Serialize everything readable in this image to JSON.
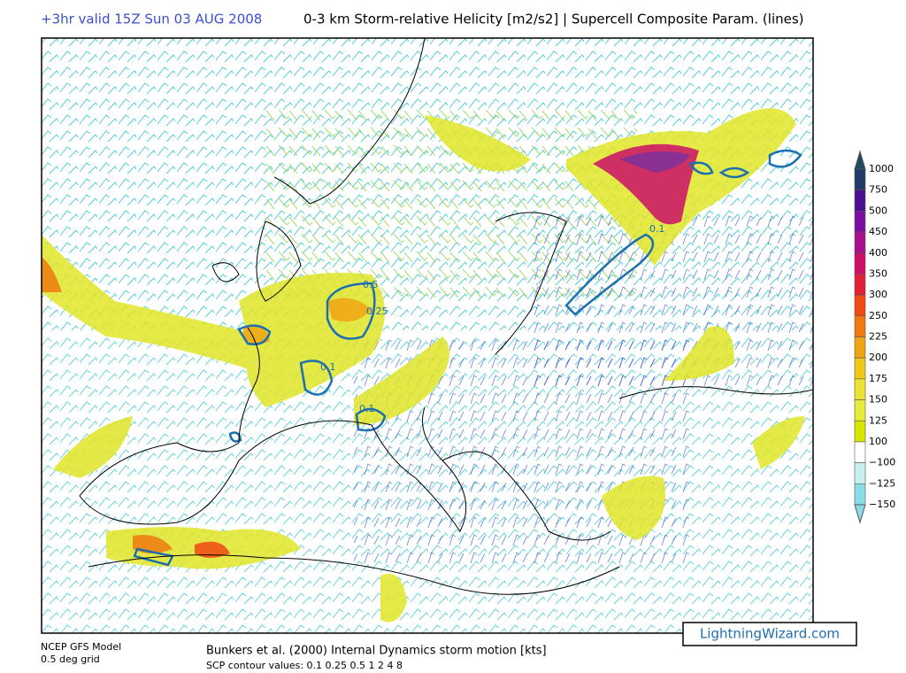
{
  "header": {
    "valid": "+3hr valid 15Z Sun 03 AUG 2008",
    "title": "0-3 km Storm-relative Helicity [m2/s2] | Supercell Composite Param. (lines)"
  },
  "legend": {
    "labels": [
      "1000",
      "750",
      "500",
      "450",
      "400",
      "350",
      "300",
      "250",
      "225",
      "200",
      "175",
      "150",
      "125",
      "100",
      "−100",
      "−125",
      "−150"
    ],
    "colors": [
      "#1f4a5e",
      "#233a6a",
      "#4a1090",
      "#7a10a0",
      "#a8108c",
      "#cc1068",
      "#e02038",
      "#f04a14",
      "#f07a10",
      "#f0a414",
      "#f0c818",
      "#ece432",
      "#e6ec3c",
      "#d8e600",
      "#ffffff",
      "#c8eef0",
      "#8cdce6",
      "#8cdce6"
    ]
  },
  "map": {
    "contour_labels": [
      "0.1",
      "0.1",
      "0.1",
      "0.25",
      "0.5"
    ]
  },
  "footer": {
    "model": "NCEP GFS Model",
    "grid": "0.5 deg grid",
    "motion": "Bunkers et al. (2000) Internal Dynamics storm motion [kts]",
    "scp": "SCP contour values: 0.1 0.25 0.5 1 2 4 8",
    "site": "LightningWizard.com"
  }
}
